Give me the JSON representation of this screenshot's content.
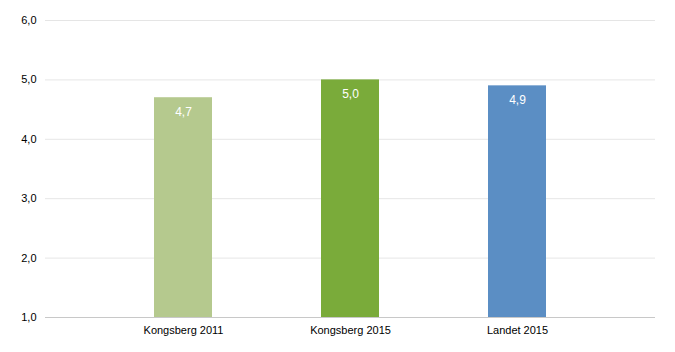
{
  "chart_data": {
    "type": "bar",
    "categories": [
      "Kongsberg 2011",
      "Kongsberg 2015",
      "Landet 2015"
    ],
    "values": [
      4.7,
      5.0,
      4.9
    ],
    "value_labels": [
      "4,7",
      "5,0",
      "4,9"
    ],
    "colors": [
      "#b5c98e",
      "#7aab3a",
      "#5b8ec4"
    ],
    "ylim": [
      1.0,
      6.0
    ],
    "yticks": [
      {
        "value": 1.0,
        "label": "1,0"
      },
      {
        "value": 2.0,
        "label": "2,0"
      },
      {
        "value": 3.0,
        "label": "3,0"
      },
      {
        "value": 4.0,
        "label": "4,0"
      },
      {
        "value": 5.0,
        "label": "5,0"
      },
      {
        "value": 6.0,
        "label": "6,0"
      }
    ],
    "grid": true,
    "data_labels": true
  }
}
